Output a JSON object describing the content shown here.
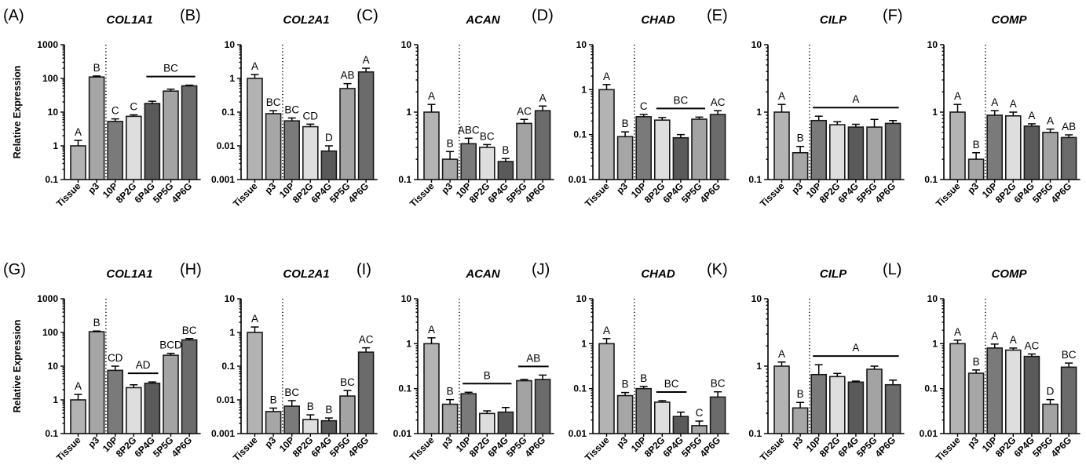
{
  "shared": {
    "categories": [
      "Tissue",
      "p3",
      "10P",
      "8P2G",
      "6P4G",
      "5P5G",
      "4P6G"
    ],
    "ylabel": "Relative Expression",
    "colors": [
      "#b3b3b3",
      "#a6a6a6",
      "#7a7a7a",
      "#dedede",
      "#5a5a5a",
      "#a3a3a3",
      "#6b6b6b"
    ]
  },
  "chart_data": [
    {
      "panel": "(A)",
      "title": "COL1A1",
      "type": "bar",
      "scale": "log",
      "ylim": [
        0.1,
        1000
      ],
      "yticks": [
        "0.1",
        "1",
        "10",
        "100",
        "1000"
      ],
      "values": [
        1,
        110,
        5.3,
        7.5,
        18,
        42,
        60
      ],
      "errors": [
        0.45,
        8,
        1.0,
        0.8,
        3,
        6,
        3
      ],
      "letters": [
        "A",
        "B",
        "C",
        "C",
        "",
        "",
        ""
      ],
      "brackets": [
        {
          "from": 4,
          "to": 6,
          "label": "BC"
        }
      ]
    },
    {
      "panel": "(B)",
      "title": "COL2A1",
      "type": "bar",
      "scale": "log",
      "ylim": [
        0.001,
        10
      ],
      "yticks": [
        "0.001",
        "0.01",
        "0.1",
        "1",
        "10"
      ],
      "values": [
        1,
        0.09,
        0.055,
        0.037,
        0.007,
        0.5,
        1.55
      ],
      "errors": [
        0.3,
        0.02,
        0.012,
        0.007,
        0.003,
        0.2,
        0.45
      ],
      "letters": [
        "A",
        "BC",
        "BC",
        "CD",
        "D",
        "AB",
        "A"
      ],
      "brackets": []
    },
    {
      "panel": "(C)",
      "title": "ACAN",
      "type": "bar",
      "scale": "log",
      "ylim": [
        0.1,
        10
      ],
      "yticks": [
        "0.1",
        "1",
        "10"
      ],
      "values": [
        1,
        0.2,
        0.34,
        0.3,
        0.185,
        0.68,
        1.05
      ],
      "errors": [
        0.3,
        0.06,
        0.07,
        0.03,
        0.02,
        0.1,
        0.18
      ],
      "letters": [
        "A",
        "B",
        "ABC",
        "BC",
        "B",
        "AC",
        "A"
      ],
      "brackets": []
    },
    {
      "panel": "(D)",
      "title": "CHAD",
      "type": "bar",
      "scale": "log",
      "ylim": [
        0.01,
        10
      ],
      "yticks": [
        "0.01",
        "0.1",
        "1",
        "10"
      ],
      "values": [
        1,
        0.09,
        0.25,
        0.21,
        0.085,
        0.22,
        0.28
      ],
      "errors": [
        0.3,
        0.025,
        0.03,
        0.03,
        0.015,
        0.025,
        0.06
      ],
      "letters": [
        "A",
        "B",
        "C",
        "",
        "",
        "",
        "AC"
      ],
      "brackets": [
        {
          "from": 3,
          "to": 5,
          "label": "BC"
        }
      ]
    },
    {
      "panel": "(E)",
      "title": "CILP",
      "type": "bar",
      "scale": "log",
      "ylim": [
        0.1,
        10
      ],
      "yticks": [
        "0.1",
        "1",
        "10"
      ],
      "values": [
        1,
        0.25,
        0.75,
        0.65,
        0.6,
        0.6,
        0.68
      ],
      "errors": [
        0.3,
        0.06,
        0.12,
        0.07,
        0.06,
        0.18,
        0.07
      ],
      "letters": [
        "A",
        "B",
        "",
        "",
        "",
        "",
        ""
      ],
      "brackets": [
        {
          "from": 2,
          "to": 6,
          "label": "A"
        }
      ]
    },
    {
      "panel": "(F)",
      "title": "COMP",
      "type": "bar",
      "scale": "log",
      "ylim": [
        0.1,
        10
      ],
      "yticks": [
        "0.1",
        "1",
        "10"
      ],
      "values": [
        1,
        0.2,
        0.9,
        0.88,
        0.62,
        0.5,
        0.42
      ],
      "errors": [
        0.3,
        0.05,
        0.15,
        0.12,
        0.05,
        0.06,
        0.04
      ],
      "letters": [
        "A",
        "B",
        "A",
        "A",
        "A",
        "A",
        "AB"
      ],
      "brackets": []
    },
    {
      "panel": "(G)",
      "title": "COL1A1",
      "type": "bar",
      "scale": "log",
      "ylim": [
        0.1,
        1000
      ],
      "yticks": [
        "0.1",
        "1",
        "10",
        "100",
        "1000"
      ],
      "values": [
        1,
        105,
        7.5,
        2.3,
        3.1,
        21,
        60
      ],
      "errors": [
        0.45,
        5,
        2.5,
        0.5,
        0.3,
        3,
        6
      ],
      "letters": [
        "A",
        "B",
        "CD",
        "",
        "",
        "BCD",
        "BC"
      ],
      "brackets": [
        {
          "from": 3,
          "to": 4,
          "label": "AD"
        }
      ]
    },
    {
      "panel": "(H)",
      "title": "COL2A1",
      "type": "bar",
      "scale": "log",
      "ylim": [
        0.001,
        10
      ],
      "yticks": [
        "0.001",
        "0.01",
        "0.1",
        "1",
        "10"
      ],
      "values": [
        1,
        0.0045,
        0.0065,
        0.0026,
        0.0024,
        0.013,
        0.26
      ],
      "errors": [
        0.45,
        0.0012,
        0.003,
        0.001,
        0.0005,
        0.006,
        0.09
      ],
      "letters": [
        "A",
        "B",
        "BC",
        "B",
        "B",
        "BC",
        "AC"
      ],
      "brackets": []
    },
    {
      "panel": "(I)",
      "title": "ACAN",
      "type": "bar",
      "scale": "log",
      "ylim": [
        0.01,
        10
      ],
      "yticks": [
        "0.01",
        "0.1",
        "1",
        "10"
      ],
      "values": [
        1,
        0.045,
        0.077,
        0.028,
        0.03,
        0.15,
        0.16
      ],
      "errors": [
        0.35,
        0.012,
        0.006,
        0.004,
        0.008,
        0.01,
        0.04
      ],
      "letters": [
        "A",
        "B",
        "",
        "",
        "",
        "",
        ""
      ],
      "brackets": [
        {
          "from": 2,
          "to": 4,
          "label": "B"
        },
        {
          "from": 5,
          "to": 6,
          "label": "AB"
        }
      ]
    },
    {
      "panel": "(J)",
      "title": "CHAD",
      "type": "bar",
      "scale": "log",
      "ylim": [
        0.01,
        10
      ],
      "yticks": [
        "0.01",
        "0.1",
        "1",
        "10"
      ],
      "values": [
        1,
        0.07,
        0.1,
        0.05,
        0.024,
        0.015,
        0.065
      ],
      "errors": [
        0.3,
        0.012,
        0.012,
        0.004,
        0.006,
        0.004,
        0.02
      ],
      "letters": [
        "A",
        "B",
        "B",
        "",
        "",
        "C",
        "BC"
      ],
      "brackets": [
        {
          "from": 3,
          "to": 4,
          "label": "BC"
        }
      ]
    },
    {
      "panel": "(K)",
      "title": "CILP",
      "type": "bar",
      "scale": "log",
      "ylim": [
        0.1,
        10
      ],
      "yticks": [
        "0.1",
        "1",
        "10"
      ],
      "values": [
        1,
        0.24,
        0.75,
        0.7,
        0.58,
        0.9,
        0.53
      ],
      "errors": [
        0.15,
        0.05,
        0.3,
        0.08,
        0.02,
        0.1,
        0.09
      ],
      "letters": [
        "A",
        "B",
        "",
        "",
        "",
        "",
        ""
      ],
      "brackets": [
        {
          "from": 2,
          "to": 6,
          "label": "A"
        }
      ]
    },
    {
      "panel": "(L)",
      "title": "COMP",
      "type": "bar",
      "scale": "log",
      "ylim": [
        0.01,
        10
      ],
      "yticks": [
        "0.01",
        "0.1",
        "1",
        "10"
      ],
      "values": [
        1,
        0.22,
        0.8,
        0.72,
        0.52,
        0.045,
        0.3
      ],
      "errors": [
        0.2,
        0.04,
        0.18,
        0.08,
        0.07,
        0.012,
        0.07
      ],
      "letters": [
        "A",
        "B",
        "A",
        "A",
        "AC",
        "D",
        "BC"
      ],
      "brackets": []
    }
  ]
}
